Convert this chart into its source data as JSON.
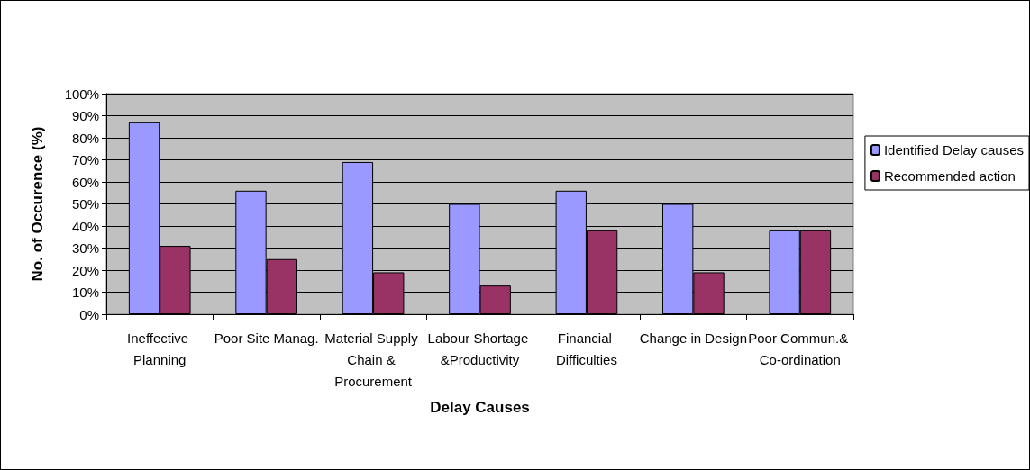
{
  "chart_data": {
    "type": "bar",
    "xlabel": "Delay Causes",
    "ylabel": "No. of Occurence (%)",
    "categories": [
      "Ineffective Planning",
      "Poor Site Manag.",
      "Material Supply Chain & Procurement",
      "Labour Shortage &Productivity",
      "Financial Difficulties",
      "Change in Design",
      "Poor Commun.& Co-ordination"
    ],
    "series": [
      {
        "name": "Identified Delay causes",
        "color": "#9999ff",
        "values": [
          87,
          56,
          69,
          50,
          56,
          50,
          38
        ]
      },
      {
        "name": "Recommended action",
        "color": "#993366",
        "values": [
          31,
          25,
          19,
          13,
          38,
          19,
          38
        ]
      }
    ],
    "ylim": [
      0,
      100
    ],
    "yticks": [
      {
        "value": 0,
        "label": "0%"
      },
      {
        "value": 10,
        "label": "10%"
      },
      {
        "value": 20,
        "label": "20%"
      },
      {
        "value": 30,
        "label": "30%"
      },
      {
        "value": 40,
        "label": "40%"
      },
      {
        "value": 50,
        "label": "50%"
      },
      {
        "value": 60,
        "label": "60%"
      },
      {
        "value": 70,
        "label": "70%"
      },
      {
        "value": 80,
        "label": "80%"
      },
      {
        "value": 90,
        "label": "90%"
      },
      {
        "value": 100,
        "label": "100%"
      }
    ],
    "grid": "y",
    "legend": "right"
  }
}
